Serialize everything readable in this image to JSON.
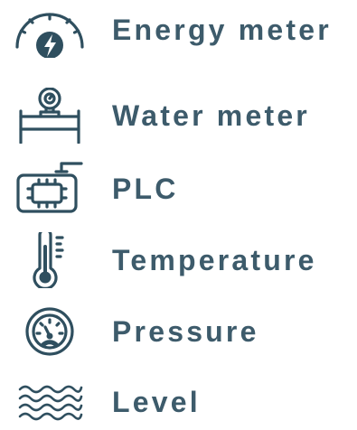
{
  "colors": {
    "icon": "#2f4f5f",
    "text": "#3d5b6b",
    "background": "#ffffff"
  },
  "items": [
    {
      "icon": "energy-meter-icon",
      "label": "Energy meter"
    },
    {
      "icon": "water-meter-icon",
      "label": "Water meter"
    },
    {
      "icon": "plc-icon",
      "label": "PLC"
    },
    {
      "icon": "thermometer-icon",
      "label": "Temperature"
    },
    {
      "icon": "pressure-gauge-icon",
      "label": "Pressure"
    },
    {
      "icon": "level-waves-icon",
      "label": "Level"
    }
  ]
}
